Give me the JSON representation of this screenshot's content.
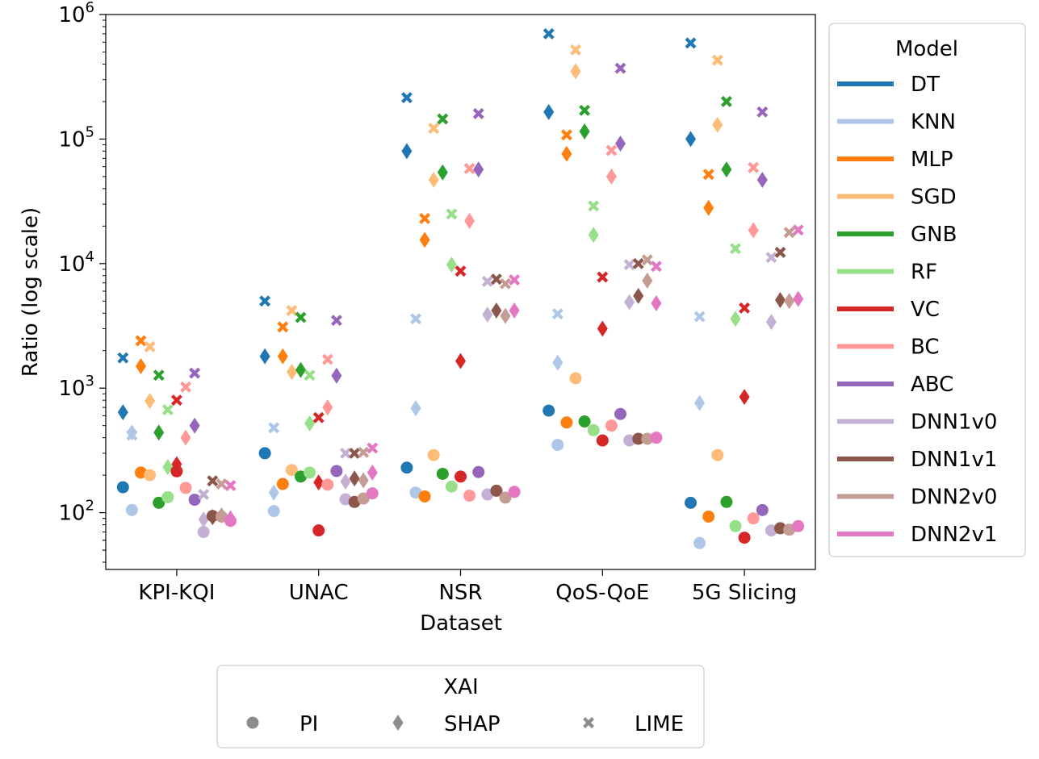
{
  "chart_data": {
    "type": "scatter",
    "xlabel": "Dataset",
    "ylabel": "Ratio (log scale)",
    "y_scale": "log",
    "ylim": [
      35,
      1000000
    ],
    "y_ticks": [
      {
        "value": 100,
        "base": "10",
        "exp": "2"
      },
      {
        "value": 1000,
        "base": "10",
        "exp": "3"
      },
      {
        "value": 10000,
        "base": "10",
        "exp": "4"
      },
      {
        "value": 100000,
        "base": "10",
        "exp": "5"
      },
      {
        "value": 1000000,
        "base": "10",
        "exp": "6"
      }
    ],
    "categories": [
      "KPI-KQI",
      "UNAC",
      "NSR",
      "QoS-QoE",
      "5G Slicing"
    ],
    "grid": false,
    "legend_model": {
      "title": "Model",
      "placement": "right",
      "entries": [
        {
          "name": "DT",
          "color": "#1f77b4"
        },
        {
          "name": "KNN",
          "color": "#aec7e8"
        },
        {
          "name": "MLP",
          "color": "#ff7f0e"
        },
        {
          "name": "SGD",
          "color": "#ffbb78"
        },
        {
          "name": "GNB",
          "color": "#2ca02c"
        },
        {
          "name": "RF",
          "color": "#98df8a"
        },
        {
          "name": "VC",
          "color": "#d62728"
        },
        {
          "name": "BC",
          "color": "#ff9896"
        },
        {
          "name": "ABC",
          "color": "#9467bd"
        },
        {
          "name": "DNN1v0",
          "color": "#c5b0d5"
        },
        {
          "name": "DNN1v1",
          "color": "#8c564b"
        },
        {
          "name": "DNN2v0",
          "color": "#c49c94"
        },
        {
          "name": "DNN2v1",
          "color": "#e377c2"
        }
      ]
    },
    "legend_xai": {
      "title": "XAI",
      "placement": "bottom",
      "marker_color": "#8c8c8c",
      "entries": [
        {
          "name": "PI",
          "marker": "circle"
        },
        {
          "name": "SHAP",
          "marker": "diamond"
        },
        {
          "name": "LIME",
          "marker": "x"
        }
      ]
    },
    "series": [
      {
        "model": "DT",
        "PI": [
          160,
          300,
          230,
          660,
          120
        ],
        "SHAP": [
          640,
          1800,
          80000,
          165000,
          100000
        ],
        "LIME": [
          1750,
          5000,
          215000,
          700000,
          590000
        ]
      },
      {
        "model": "KNN",
        "PI": [
          105,
          103,
          145,
          350,
          57
        ],
        "SHAP": [
          440,
          145,
          690,
          1600,
          760
        ],
        "LIME": [
          420,
          480,
          3600,
          3950,
          3750
        ]
      },
      {
        "model": "MLP",
        "PI": [
          210,
          170,
          135,
          530,
          93
        ],
        "SHAP": [
          1500,
          1800,
          15500,
          76000,
          28000
        ],
        "LIME": [
          2400,
          3100,
          23000,
          108000,
          52000
        ]
      },
      {
        "model": "SGD",
        "PI": [
          200,
          220,
          290,
          1200,
          290
        ],
        "SHAP": [
          790,
          1350,
          47000,
          350000,
          130000
        ],
        "LIME": [
          2150,
          4200,
          122000,
          520000,
          430000
        ]
      },
      {
        "model": "GNB",
        "PI": [
          120,
          195,
          205,
          540,
          122
        ],
        "SHAP": [
          440,
          1400,
          54000,
          115000,
          57000
        ],
        "LIME": [
          1270,
          3700,
          145000,
          170000,
          200000
        ]
      },
      {
        "model": "RF",
        "PI": [
          133,
          210,
          162,
          460,
          78
        ],
        "SHAP": [
          232,
          520,
          9800,
          17000,
          3600
        ],
        "LIME": [
          670,
          1270,
          25000,
          29000,
          13200
        ]
      },
      {
        "model": "VC",
        "PI": [
          215,
          72,
          195,
          380,
          63
        ],
        "SHAP": [
          245,
          175,
          1650,
          3000,
          850
        ],
        "LIME": [
          800,
          580,
          8700,
          7800,
          4400
        ]
      },
      {
        "model": "BC",
        "PI": [
          158,
          168,
          137,
          500,
          90
        ],
        "SHAP": [
          400,
          700,
          22000,
          50000,
          18500
        ],
        "LIME": [
          1020,
          1700,
          58000,
          81000,
          59000
        ]
      },
      {
        "model": "ABC",
        "PI": [
          127,
          216,
          212,
          620,
          105
        ],
        "SHAP": [
          500,
          1260,
          57000,
          92000,
          47000
        ],
        "LIME": [
          1320,
          3500,
          160000,
          370000,
          165000
        ]
      },
      {
        "model": "DNN1v0",
        "PI": [
          70,
          128,
          140,
          380,
          72
        ],
        "SHAP": [
          88,
          178,
          3900,
          4900,
          3400
        ],
        "LIME": [
          140,
          300,
          7200,
          9800,
          11200
        ]
      },
      {
        "model": "DNN1v1",
        "PI": [
          94,
          122,
          150,
          392,
          75
        ],
        "SHAP": [
          92,
          188,
          4200,
          5500,
          5100
        ],
        "LIME": [
          180,
          300,
          7500,
          10000,
          12300
        ]
      },
      {
        "model": "DNN2v0",
        "PI": [
          93,
          130,
          132,
          392,
          73
        ],
        "SHAP": [
          95,
          182,
          3800,
          7300,
          5000
        ],
        "LIME": [
          170,
          305,
          6900,
          10700,
          17800
        ]
      },
      {
        "model": "DNN2v1",
        "PI": [
          86,
          143,
          147,
          400,
          78
        ],
        "SHAP": [
          90,
          210,
          4200,
          4800,
          5200
        ],
        "LIME": [
          165,
          330,
          7400,
          9500,
          18600
        ]
      }
    ]
  }
}
